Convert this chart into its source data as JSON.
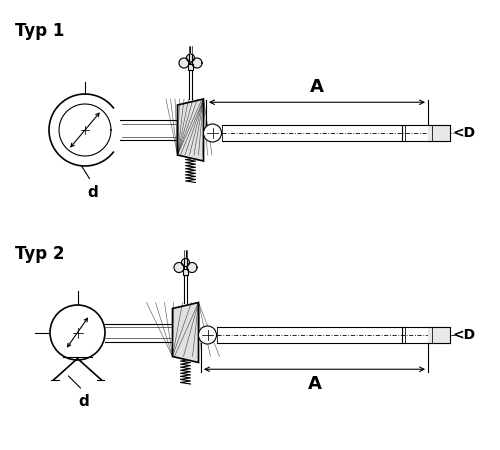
{
  "bg_color": "#ffffff",
  "line_color": "#000000",
  "title1": "Typ 1",
  "title2": "Typ 2",
  "label_A": "A",
  "label_D": "<D",
  "label_d": "d",
  "fig_width": 5.0,
  "fig_height": 4.5,
  "dpi": 100
}
